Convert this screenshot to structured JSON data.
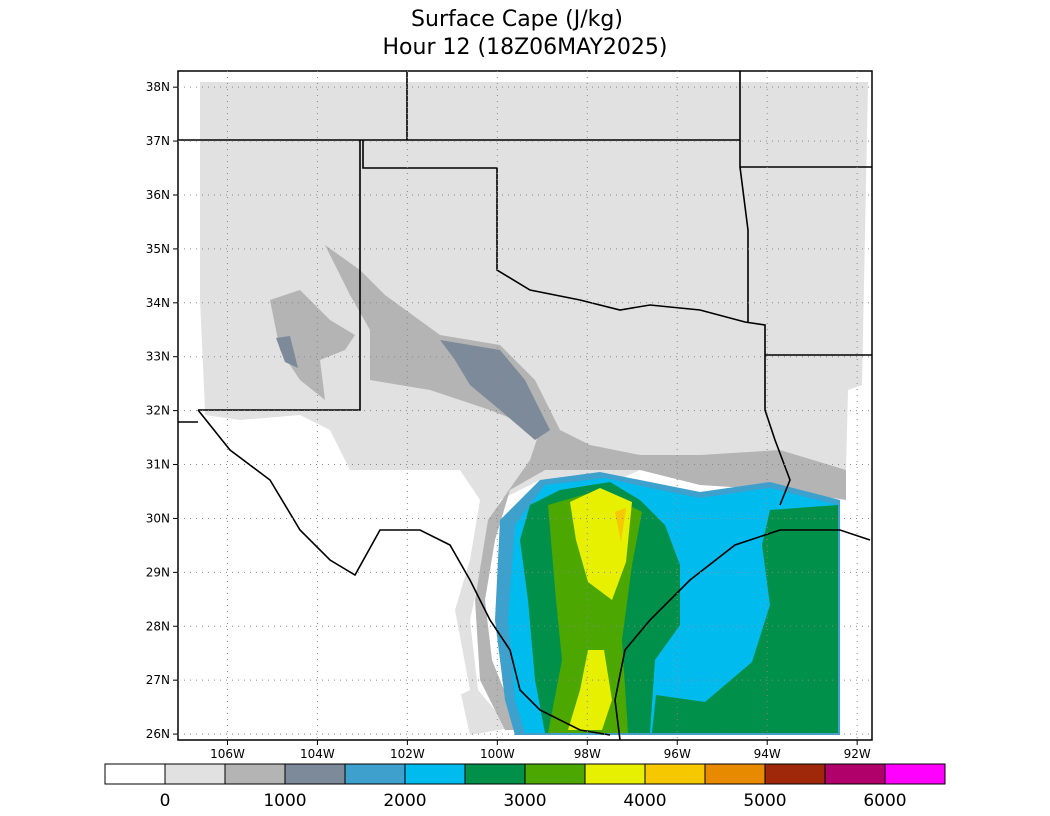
{
  "header": {
    "title": "Surface Cape (J/kg)",
    "subtitle": "Hour 12 (18Z06MAY2025)"
  },
  "map": {
    "xlim": [
      -107.1,
      -91.67
    ],
    "ylim": [
      25.89,
      38.3
    ],
    "grid": true,
    "xticks": [
      {
        "value": -106,
        "label": "106W"
      },
      {
        "value": -104,
        "label": "104W"
      },
      {
        "value": -102,
        "label": "102W"
      },
      {
        "value": -100,
        "label": "100W"
      },
      {
        "value": -98,
        "label": "98W"
      },
      {
        "value": -96,
        "label": "96W"
      },
      {
        "value": -94,
        "label": "94W"
      },
      {
        "value": -92,
        "label": "92W"
      }
    ],
    "yticks": [
      {
        "value": 26,
        "label": "26N"
      },
      {
        "value": 27,
        "label": "27N"
      },
      {
        "value": 28,
        "label": "28N"
      },
      {
        "value": 29,
        "label": "29N"
      },
      {
        "value": 30,
        "label": "30N"
      },
      {
        "value": 31,
        "label": "31N"
      },
      {
        "value": 32,
        "label": "32N"
      },
      {
        "value": 33,
        "label": "33N"
      },
      {
        "value": 34,
        "label": "34N"
      },
      {
        "value": 35,
        "label": "35N"
      },
      {
        "value": 36,
        "label": "36N"
      },
      {
        "value": 37,
        "label": "37N"
      },
      {
        "value": 38,
        "label": "38N"
      }
    ]
  },
  "colorbar": {
    "range": [
      -500,
      6500
    ],
    "ticks": [
      0,
      1000,
      2000,
      3000,
      4000,
      5000,
      6000
    ],
    "colors": [
      "#ffffff",
      "#e1e1e1",
      "#b4b4b4",
      "#7d8a99",
      "#3ea0cc",
      "#00bbee",
      "#00904a",
      "#4ca800",
      "#e6f000",
      "#f5c800",
      "#e88a00",
      "#a0280a",
      "#b0006a",
      "#ff00ff"
    ]
  }
}
